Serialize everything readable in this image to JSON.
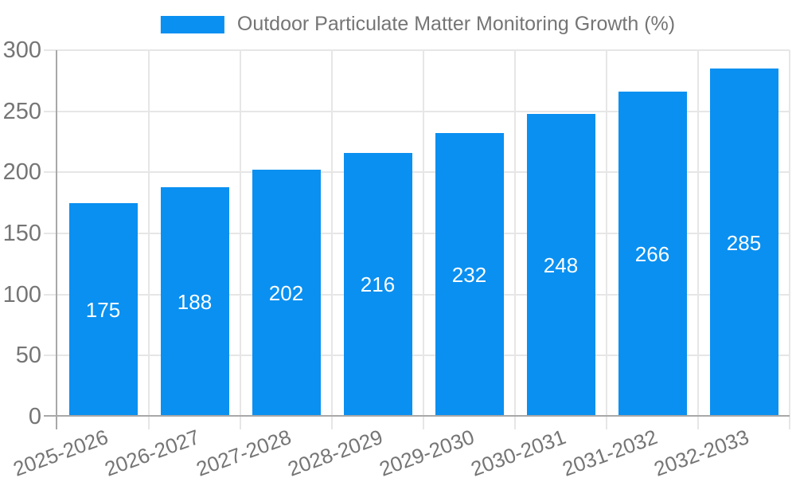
{
  "chart_data": {
    "type": "bar",
    "title": "Outdoor Particulate Matter Monitoring Growth (%)",
    "categories": [
      "2025-2026",
      "2026-2027",
      "2027-2028",
      "2028-2029",
      "2029-2030",
      "2030-2031",
      "2031-2032",
      "2032-2033"
    ],
    "values": [
      175,
      188,
      202,
      216,
      232,
      248,
      266,
      285
    ],
    "xlabel": "",
    "ylabel": "",
    "ylim": [
      0,
      300
    ],
    "yticks": [
      0,
      50,
      100,
      150,
      200,
      250,
      300
    ],
    "grid": true,
    "legend_position": "top-center",
    "bar_label_position": "center",
    "x_label_rotation_deg": -20,
    "colors": {
      "bar": "#0a90f1",
      "grid": "#e6e6e6",
      "axis": "#a8a8a8",
      "tick_label": "#757575",
      "bar_value_label": "#ffffff",
      "background": "#ffffff"
    }
  }
}
